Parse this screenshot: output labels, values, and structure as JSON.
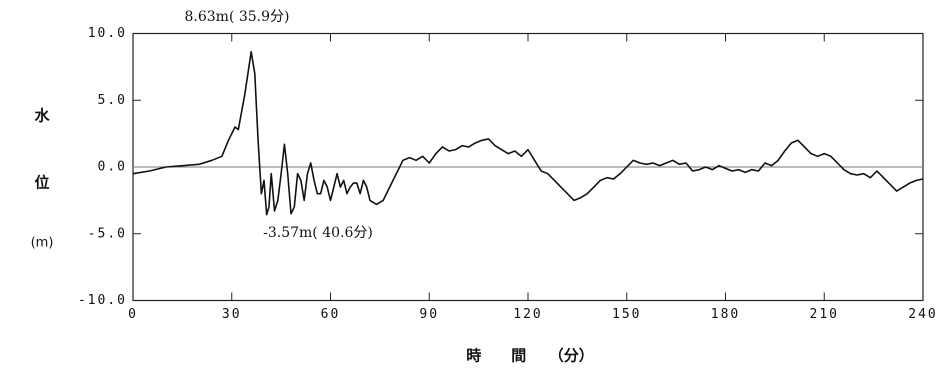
{
  "chart_data": {
    "type": "line",
    "ylabel": [
      "水",
      "位",
      "(m)"
    ],
    "xlabel": "時　　間　　（分）",
    "annotations": [
      "8.63m( 35.9分)",
      "-3.57m( 40.6分)"
    ],
    "xlim": [
      0,
      240
    ],
    "xticks": [
      0,
      30,
      60,
      90,
      120,
      150,
      180,
      210,
      240
    ],
    "ylim": [
      -10,
      10
    ],
    "yticks": [
      {
        "value": 10,
        "label": "10.0"
      },
      {
        "value": 5,
        "label": "5.0"
      },
      {
        "value": 0,
        "label": "0.0"
      },
      {
        "value": -5,
        "label": "-5.0"
      },
      {
        "value": -10,
        "label": "-10.0"
      }
    ],
    "zero_line": true,
    "x": [
      0,
      5,
      10,
      15,
      20,
      24,
      27,
      29,
      31,
      32,
      34,
      35.9,
      37,
      38,
      39,
      39.8,
      40.6,
      41.3,
      42,
      43,
      44,
      45,
      46,
      47,
      48,
      49,
      50,
      51,
      52,
      53,
      54,
      55,
      56,
      57,
      58,
      59,
      60,
      61,
      62,
      63,
      64,
      65,
      66,
      67,
      68,
      69,
      70,
      71,
      72,
      74,
      76,
      77,
      78,
      80,
      82,
      84,
      86,
      88,
      90,
      92,
      94,
      96,
      98,
      100,
      102,
      104,
      106,
      108,
      110,
      112,
      114,
      116,
      118,
      120,
      122,
      124,
      126,
      128,
      130,
      132,
      134,
      136,
      138,
      140,
      142,
      144,
      146,
      148,
      150,
      152,
      154,
      156,
      158,
      160,
      162,
      164,
      166,
      168,
      170,
      172,
      174,
      176,
      178,
      180,
      182,
      184,
      186,
      188,
      190,
      192,
      194,
      196,
      198,
      200,
      202,
      204,
      206,
      208,
      210,
      212,
      214,
      216,
      218,
      220,
      222,
      224,
      226,
      228,
      230,
      232,
      234,
      236,
      238,
      240
    ],
    "series": [
      {
        "color": "#111111",
        "values": [
          -0.5,
          -0.3,
          0,
          0.1,
          0.2,
          0.5,
          0.8,
          2.0,
          3.0,
          2.8,
          5.5,
          8.63,
          7.0,
          2.0,
          -2.0,
          -1.0,
          -3.57,
          -3.0,
          -0.5,
          -3.3,
          -2.5,
          -0.5,
          1.7,
          -0.5,
          -3.5,
          -3.0,
          -0.5,
          -1.0,
          -2.5,
          -0.5,
          0.3,
          -1.0,
          -2.0,
          -2.0,
          -1.0,
          -1.5,
          -2.5,
          -1.5,
          -0.5,
          -1.5,
          -1.0,
          -2.0,
          -1.5,
          -1.2,
          -1.2,
          -2.0,
          -1.0,
          -1.5,
          -2.5,
          -2.8,
          -2.5,
          -2.0,
          -1.5,
          -0.5,
          0.5,
          0.7,
          0.5,
          0.8,
          0.3,
          1.0,
          1.5,
          1.2,
          1.3,
          1.6,
          1.5,
          1.8,
          2.0,
          2.1,
          1.6,
          1.3,
          1.0,
          1.2,
          0.8,
          1.3,
          0.5,
          -0.3,
          -0.5,
          -1.0,
          -1.5,
          -2.0,
          -2.5,
          -2.3,
          -2.0,
          -1.5,
          -1.0,
          -0.8,
          -0.9,
          -0.5,
          0,
          0.5,
          0.3,
          0.2,
          0.3,
          0.1,
          0.3,
          0.5,
          0.2,
          0.3,
          -0.3,
          -0.2,
          0,
          -0.2,
          0.1,
          -0.1,
          -0.3,
          -0.2,
          -0.4,
          -0.2,
          -0.3,
          0.3,
          0.1,
          0.5,
          1.2,
          1.8,
          2.0,
          1.5,
          1.0,
          0.8,
          1.0,
          0.8,
          0.3,
          -0.2,
          -0.5,
          -0.6,
          -0.5,
          -0.8,
          -0.3,
          -0.8,
          -1.3,
          -1.8,
          -1.5,
          -1.2,
          -1.0,
          -0.9
        ]
      }
    ]
  }
}
